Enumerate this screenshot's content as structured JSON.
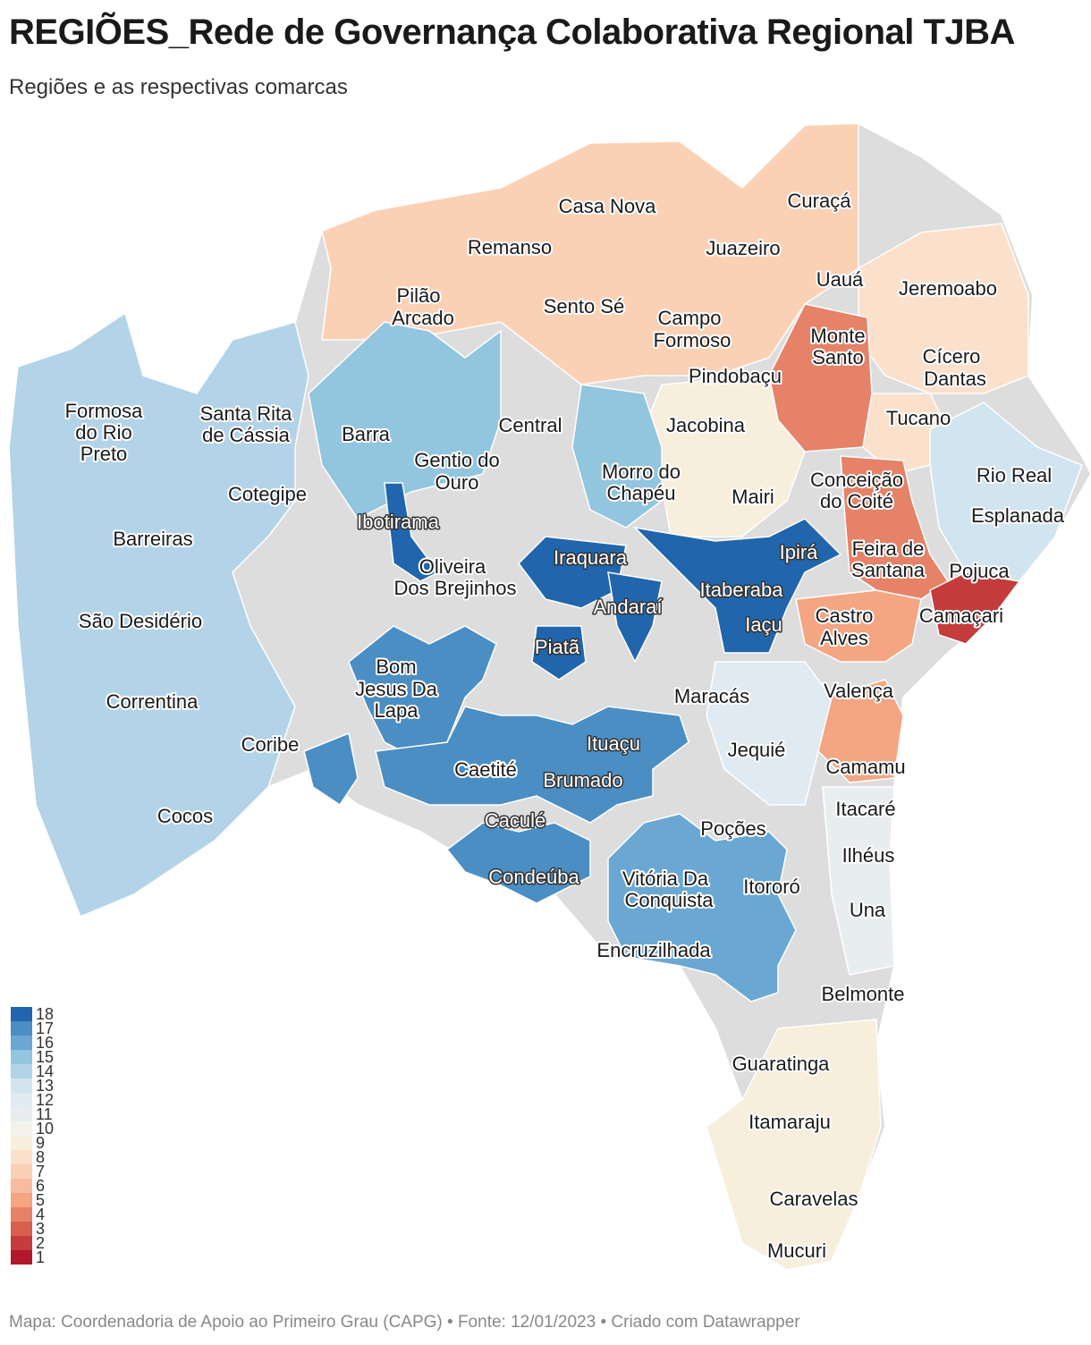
{
  "header": {
    "title": "REGIÕES_Rede de Governança Colaborativa Regional TJBA",
    "subtitle": "Regiões e as respectivas comarcas"
  },
  "colors": {
    "base": "#dddddd",
    "scale": {
      "1": "#b2182b",
      "2": "#c43c3c",
      "3": "#d6604d",
      "4": "#e58268",
      "5": "#f4a582",
      "6": "#f7bca0",
      "7": "#fbd1b6",
      "8": "#fbe0cc",
      "9": "#f7eedc",
      "10": "#f3f3ec",
      "11": "#e8eef0",
      "12": "#dfeaf2",
      "13": "#d1e5f0",
      "14": "#b3d4e8",
      "15": "#92c5de",
      "16": "#6aa8d3",
      "17": "#4b8ec3",
      "18": "#2166ac"
    }
  },
  "legend": [
    "18",
    "17",
    "16",
    "15",
    "14",
    "13",
    "12",
    "11",
    "10",
    "9",
    "8",
    "7",
    "6",
    "5",
    "4",
    "3",
    "2",
    "1"
  ],
  "labels": [
    {
      "text": "Casa Nova",
      "style": "dark"
    },
    {
      "text": "Curaçá",
      "style": "dark"
    },
    {
      "text": "Remanso",
      "style": "dark"
    },
    {
      "text": "Juazeiro",
      "style": "dark"
    },
    {
      "text": "Pilão",
      "style": "dark"
    },
    {
      "text": "Arcado",
      "style": "dark"
    },
    {
      "text": "Sento Sé",
      "style": "dark"
    },
    {
      "text": "Uauá",
      "style": "dark"
    },
    {
      "text": "Jeremoabo",
      "style": "dark"
    },
    {
      "text": "Campo",
      "style": "dark"
    },
    {
      "text": "Formoso",
      "style": "dark"
    },
    {
      "text": "Monte",
      "style": "dark"
    },
    {
      "text": "Santo",
      "style": "dark"
    },
    {
      "text": "Cícero",
      "style": "dark"
    },
    {
      "text": "Dantas",
      "style": "dark"
    },
    {
      "text": "Pindobaçu",
      "style": "dark"
    },
    {
      "text": "Formosa",
      "style": "dark"
    },
    {
      "text": "do Rio",
      "style": "dark"
    },
    {
      "text": "Preto",
      "style": "dark"
    },
    {
      "text": "Santa Rita",
      "style": "dark"
    },
    {
      "text": "de Cássia",
      "style": "dark"
    },
    {
      "text": "Barra",
      "style": "dark"
    },
    {
      "text": "Central",
      "style": "dark"
    },
    {
      "text": "Jacobina",
      "style": "dark"
    },
    {
      "text": "Tucano",
      "style": "dark"
    },
    {
      "text": "Gentio do",
      "style": "dark"
    },
    {
      "text": "Ouro",
      "style": "dark"
    },
    {
      "text": "Morro do",
      "style": "dark"
    },
    {
      "text": "Chapéu",
      "style": "dark"
    },
    {
      "text": "Conceição",
      "style": "dark"
    },
    {
      "text": "do Coité",
      "style": "dark"
    },
    {
      "text": "Rio Real",
      "style": "dark"
    },
    {
      "text": "Cotegipe",
      "style": "dark"
    },
    {
      "text": "Mairi",
      "style": "dark"
    },
    {
      "text": "Esplanada",
      "style": "dark"
    },
    {
      "text": "Ibotirama",
      "style": "light"
    },
    {
      "text": "Barreiras",
      "style": "dark"
    },
    {
      "text": "Ipirá",
      "style": "light"
    },
    {
      "text": "Feira de",
      "style": "dark"
    },
    {
      "text": "Santana",
      "style": "dark"
    },
    {
      "text": "Iraquara",
      "style": "light"
    },
    {
      "text": "Oliveira",
      "style": "dark"
    },
    {
      "text": "Dos Brejinhos",
      "style": "dark"
    },
    {
      "text": "Pojuca",
      "style": "dark"
    },
    {
      "text": "Itaberaba",
      "style": "light"
    },
    {
      "text": "Andaraí",
      "style": "light"
    },
    {
      "text": "Camaçari",
      "style": "dark"
    },
    {
      "text": "Castro",
      "style": "dark"
    },
    {
      "text": "Alves",
      "style": "dark"
    },
    {
      "text": "São Desidério",
      "style": "dark"
    },
    {
      "text": "Iaçu",
      "style": "light"
    },
    {
      "text": "Piatã",
      "style": "light"
    },
    {
      "text": "Bom",
      "style": "dark"
    },
    {
      "text": "Jesus Da",
      "style": "dark"
    },
    {
      "text": "Lapa",
      "style": "dark"
    },
    {
      "text": "Maracás",
      "style": "dark"
    },
    {
      "text": "Valença",
      "style": "dark"
    },
    {
      "text": "Correntina",
      "style": "dark"
    },
    {
      "text": "Coribe",
      "style": "dark"
    },
    {
      "text": "Ituaçu",
      "style": "light"
    },
    {
      "text": "Jequié",
      "style": "dark"
    },
    {
      "text": "Camamu",
      "style": "dark"
    },
    {
      "text": "Caetité",
      "style": "dark"
    },
    {
      "text": "Brumado",
      "style": "light"
    },
    {
      "text": "Cocos",
      "style": "dark"
    },
    {
      "text": "Itacaré",
      "style": "dark"
    },
    {
      "text": "Caculé",
      "style": "light"
    },
    {
      "text": "Poções",
      "style": "dark"
    },
    {
      "text": "Ilhéus",
      "style": "dark"
    },
    {
      "text": "Condeúba",
      "style": "light"
    },
    {
      "text": "Vitória Da",
      "style": "dark"
    },
    {
      "text": "Conquista",
      "style": "dark"
    },
    {
      "text": "Itororó",
      "style": "dark"
    },
    {
      "text": "Una",
      "style": "dark"
    },
    {
      "text": "Encruzilhada",
      "style": "dark"
    },
    {
      "text": "Belmonte",
      "style": "dark"
    },
    {
      "text": "Guaratinga",
      "style": "dark"
    },
    {
      "text": "Itamaraju",
      "style": "dark"
    },
    {
      "text": "Caravelas",
      "style": "dark"
    },
    {
      "text": "Mucuri",
      "style": "dark"
    }
  ],
  "footer": "Mapa: Coordenadoria de Apoio ao Primeiro Grau (CAPG) • Fonte: 12/01/2023 • Criado com Datawrapper"
}
